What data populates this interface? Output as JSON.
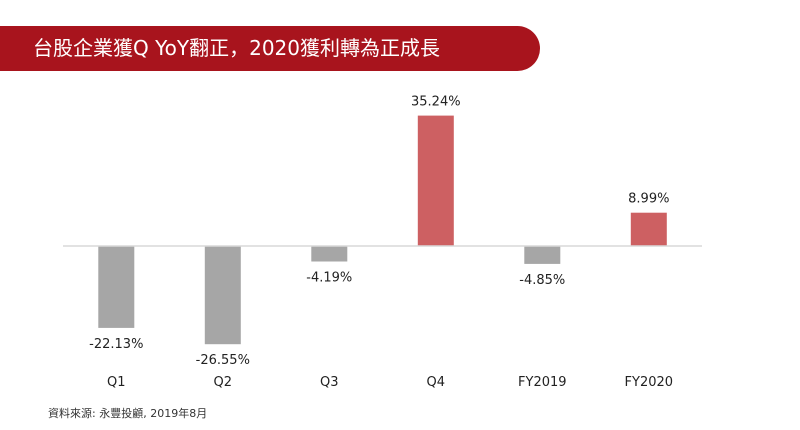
{
  "title": "台股企業獲Q YoY翻正，2020獲利轉為正成長",
  "source": "資料來源: 永豐投顧, 2019年8月",
  "colors": {
    "banner": "#a8141d",
    "negative_bar": "#a6a6a6",
    "positive_bar": "#cd6062",
    "axis": "#d9d9d9"
  },
  "chart_data": {
    "type": "bar",
    "title": "",
    "xlabel": "",
    "ylabel": "",
    "categories": [
      "Q1",
      "Q2",
      "Q3",
      "Q4",
      "FY2019",
      "FY2020"
    ],
    "values": [
      -22.13,
      -26.55,
      -4.19,
      35.24,
      -4.85,
      8.99
    ],
    "data_labels": [
      "-22.13%",
      "-26.55%",
      "-4.19%",
      "35.24%",
      "-4.85%",
      "8.99%"
    ],
    "ylim": [
      -30,
      40
    ],
    "grid": false,
    "legend": "none"
  }
}
